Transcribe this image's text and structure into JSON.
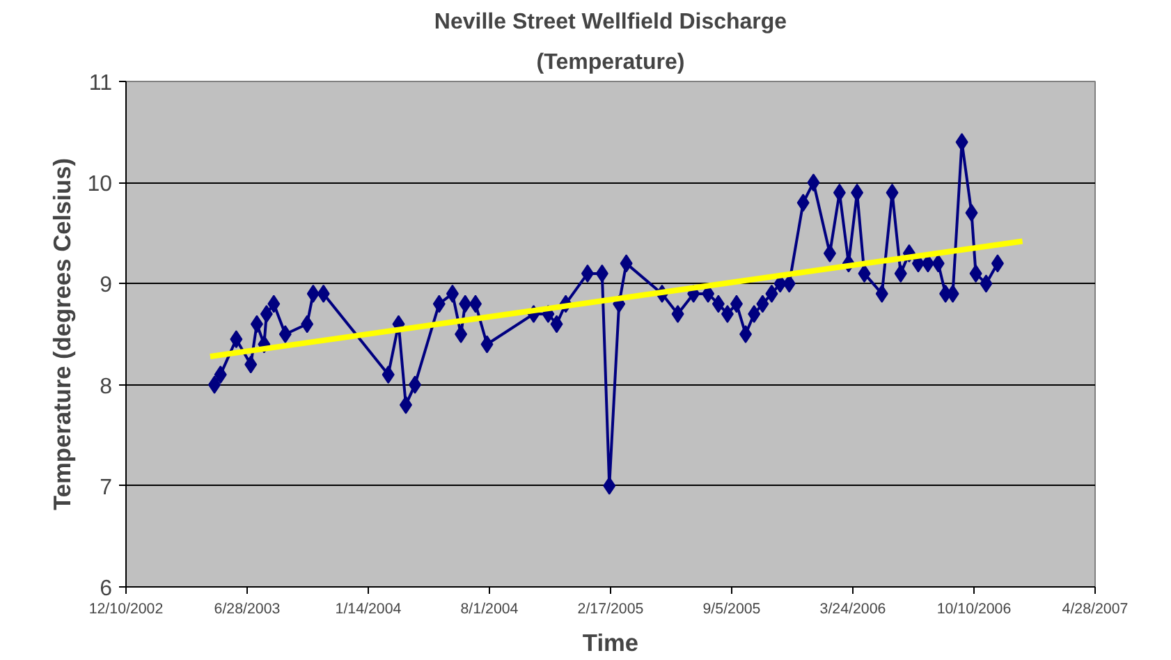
{
  "chart_data": {
    "type": "line",
    "title": "Neville Street Wellfield Discharge",
    "subtitle": "(Temperature)",
    "xlabel": "Time",
    "ylabel": "Temperature (degrees Celsius)",
    "x": [
      "2003-05-05",
      "2003-05-15",
      "2003-06-10",
      "2003-07-04",
      "2003-07-14",
      "2003-07-26",
      "2003-07-30",
      "2003-08-11",
      "2003-08-30",
      "2003-10-05",
      "2003-10-15",
      "2003-11-01",
      "2004-02-16",
      "2004-03-04",
      "2004-03-16",
      "2004-03-31",
      "2004-05-10",
      "2004-06-01",
      "2004-06-15",
      "2004-06-22",
      "2004-07-09",
      "2004-07-28",
      "2004-10-13",
      "2004-11-06",
      "2004-11-20",
      "2004-12-05",
      "2005-01-10",
      "2005-02-03",
      "2005-02-15",
      "2005-03-03",
      "2005-03-15",
      "2005-05-13",
      "2005-06-08",
      "2005-07-04",
      "2005-07-28",
      "2005-08-14",
      "2005-08-29",
      "2005-09-13",
      "2005-09-28",
      "2005-10-12",
      "2005-10-26",
      "2005-11-10",
      "2005-11-24",
      "2005-12-09",
      "2006-01-01",
      "2006-01-18",
      "2006-02-14",
      "2006-03-02",
      "2006-03-17",
      "2006-03-31",
      "2006-04-12",
      "2006-05-11",
      "2006-05-28",
      "2006-06-11",
      "2006-06-25",
      "2006-07-10",
      "2006-07-26",
      "2006-08-12",
      "2006-08-24",
      "2006-09-05",
      "2006-09-20",
      "2006-10-06",
      "2006-10-13",
      "2006-10-30",
      "2006-11-18"
    ],
    "series": [
      {
        "color": "#000080",
        "marker": "diamond",
        "values": [
          8.0,
          8.1,
          8.45,
          8.2,
          8.6,
          8.4,
          8.7,
          8.8,
          8.5,
          8.6,
          8.9,
          8.9,
          8.1,
          8.6,
          7.8,
          8.0,
          8.8,
          8.9,
          8.5,
          8.8,
          8.8,
          8.4,
          8.7,
          8.7,
          8.6,
          8.8,
          9.1,
          9.1,
          7.0,
          8.8,
          9.2,
          8.9,
          8.7,
          8.9,
          8.9,
          8.8,
          8.7,
          8.8,
          8.5,
          8.7,
          8.8,
          8.9,
          9.0,
          9.0,
          9.8,
          10.0,
          9.3,
          9.9,
          9.2,
          9.9,
          9.1,
          8.9,
          9.9,
          9.1,
          9.3,
          9.2,
          9.2,
          9.2,
          8.9,
          8.9,
          10.4,
          9.7,
          9.1,
          9.0,
          9.2
        ]
      },
      {
        "color": "#ffff00",
        "marker": "none",
        "x": [
          "2003-04-28",
          "2006-12-29"
        ],
        "values": [
          8.28,
          9.42
        ]
      }
    ],
    "xlim": [
      "2002-12-10",
      "2007-04-28"
    ],
    "xticks": [
      {
        "value": "2002-12-10",
        "label": "12/10/2002"
      },
      {
        "value": "2003-06-28",
        "label": "6/28/2003"
      },
      {
        "value": "2004-01-14",
        "label": "1/14/2004"
      },
      {
        "value": "2004-08-01",
        "label": "8/1/2004"
      },
      {
        "value": "2005-02-17",
        "label": "2/17/2005"
      },
      {
        "value": "2005-09-05",
        "label": "9/5/2005"
      },
      {
        "value": "2006-03-24",
        "label": "3/24/2006"
      },
      {
        "value": "2006-10-10",
        "label": "10/10/2006"
      },
      {
        "value": "2007-04-28",
        "label": "4/28/2007"
      }
    ],
    "ylim": [
      6,
      11
    ],
    "yticks": [
      6,
      7,
      8,
      9,
      10,
      11
    ],
    "grid": "y"
  }
}
